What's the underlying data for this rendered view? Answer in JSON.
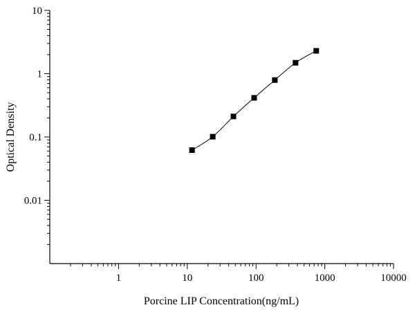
{
  "chart_data": {
    "type": "scatter",
    "title": "",
    "xlabel": "Porcine LIP Concentration(ng/mL)",
    "ylabel": "Optical Density",
    "x_scale": "log",
    "y_scale": "log",
    "xlim": [
      0.1,
      10000
    ],
    "ylim": [
      0.001,
      10
    ],
    "x_ticks": [
      {
        "value": 1,
        "label": "1"
      },
      {
        "value": 10,
        "label": "10"
      },
      {
        "value": 100,
        "label": "100"
      },
      {
        "value": 1000,
        "label": "1000"
      },
      {
        "value": 10000,
        "label": "10000"
      }
    ],
    "y_ticks": [
      {
        "value": 0.01,
        "label": "0.01"
      },
      {
        "value": 0.1,
        "label": "0.1"
      },
      {
        "value": 1,
        "label": "1"
      },
      {
        "value": 10,
        "label": "10"
      }
    ],
    "grid": false,
    "legend": "none",
    "series": [
      {
        "marker": "square",
        "line": "smooth",
        "color": "#000000",
        "points": [
          {
            "x": 11.72,
            "y": 0.062
          },
          {
            "x": 23.44,
            "y": 0.101
          },
          {
            "x": 46.88,
            "y": 0.211
          },
          {
            "x": 93.75,
            "y": 0.415
          },
          {
            "x": 187.5,
            "y": 0.793
          },
          {
            "x": 375,
            "y": 1.487
          },
          {
            "x": 750,
            "y": 2.296
          }
        ]
      }
    ]
  }
}
